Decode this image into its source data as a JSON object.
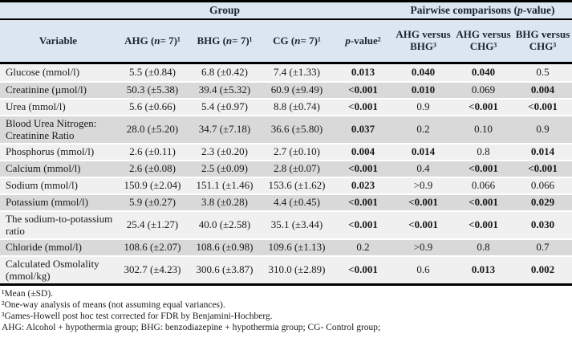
{
  "colors": {
    "header_bg": "#dce6f1",
    "row_light": "#f0f0f0",
    "row_dark": "#d9d9d9",
    "border": "#000000",
    "header_text": "#1c2334",
    "body_text": "#1a1a1a"
  },
  "table": {
    "header": {
      "group_parts": [
        {
          "t": "Group"
        }
      ],
      "pairwise_parts": [
        {
          "t": "Pairwise comparisons ("
        },
        {
          "t": "p",
          "i": true
        },
        {
          "t": "-value)"
        }
      ],
      "columns": [
        {
          "key": "variable",
          "parts": [
            {
              "t": "Variable"
            }
          ]
        },
        {
          "key": "ahg",
          "parts": [
            {
              "t": "AHG ("
            },
            {
              "t": "n",
              "i": true
            },
            {
              "t": " = 7)¹"
            }
          ]
        },
        {
          "key": "bhg",
          "parts": [
            {
              "t": "BHG ("
            },
            {
              "t": "n",
              "i": true
            },
            {
              "t": " = 7)¹"
            }
          ]
        },
        {
          "key": "cg",
          "parts": [
            {
              "t": "CG ("
            },
            {
              "t": "n",
              "i": true
            },
            {
              "t": " = 7)¹"
            }
          ]
        },
        {
          "key": "p",
          "parts": [
            {
              "t": "p",
              "i": true
            },
            {
              "t": "-value²"
            }
          ]
        },
        {
          "key": "ahg_bhg",
          "parts": [
            {
              "t": "AHG versus BHG³"
            }
          ]
        },
        {
          "key": "ahg_chg",
          "parts": [
            {
              "t": "AHG versus CHG³"
            }
          ]
        },
        {
          "key": "bhg_chg",
          "parts": [
            {
              "t": "BHG versus CHG³"
            }
          ]
        }
      ]
    },
    "rows": [
      {
        "variable": "Glucose (mmol/l)",
        "ahg": "5.5 (±0.84)",
        "bhg": "6.8 (±0.42)",
        "cg": "7.4 (±1.33)",
        "p": {
          "t": "0.013",
          "b": true
        },
        "ahg_bhg": {
          "t": "0.040",
          "b": true
        },
        "ahg_chg": {
          "t": "0.040",
          "b": true
        },
        "bhg_chg": {
          "t": "0.5",
          "b": false
        }
      },
      {
        "variable": "Creatinine (µmol/l)",
        "ahg": "50.3 (±5.38)",
        "bhg": "39.4 (±5.32)",
        "cg": "60.9 (±9.49)",
        "p": {
          "t": "<0.001",
          "b": true
        },
        "ahg_bhg": {
          "t": "0.010",
          "b": true
        },
        "ahg_chg": {
          "t": "0.069",
          "b": false
        },
        "bhg_chg": {
          "t": "0.004",
          "b": true
        }
      },
      {
        "variable": "Urea (mmol/l)",
        "ahg": "5.6 (±0.66)",
        "bhg": "5.4 (±0.97)",
        "cg": "8.8 (±0.74)",
        "p": {
          "t": "<0.001",
          "b": true
        },
        "ahg_bhg": {
          "t": "0.9",
          "b": false
        },
        "ahg_chg": {
          "t": "<0.001",
          "b": true
        },
        "bhg_chg": {
          "t": "<0.001",
          "b": true
        }
      },
      {
        "variable": "Blood Urea Nitrogen: Creatinine Ratio",
        "ahg": "28.0 (±5.20)",
        "bhg": "34.7 (±7.18)",
        "cg": "36.6 (±5.80)",
        "p": {
          "t": "0.037",
          "b": true
        },
        "ahg_bhg": {
          "t": "0.2",
          "b": false
        },
        "ahg_chg": {
          "t": "0.10",
          "b": false
        },
        "bhg_chg": {
          "t": "0.9",
          "b": false
        }
      },
      {
        "variable": "Phosphorus (mmol/l)",
        "ahg": "2.6 (±0.11)",
        "bhg": "2.3 (±0.20)",
        "cg": "2.7 (±0.10)",
        "p": {
          "t": "0.004",
          "b": true
        },
        "ahg_bhg": {
          "t": "0.014",
          "b": true
        },
        "ahg_chg": {
          "t": "0.8",
          "b": false
        },
        "bhg_chg": {
          "t": "0.014",
          "b": true
        }
      },
      {
        "variable": "Calcium (mmol/l)",
        "ahg": "2.6 (±0.08)",
        "bhg": "2.5 (±0.09)",
        "cg": "2.8 (±0.07)",
        "p": {
          "t": "<0.001",
          "b": true
        },
        "ahg_bhg": {
          "t": "0.4",
          "b": false
        },
        "ahg_chg": {
          "t": "<0.001",
          "b": true
        },
        "bhg_chg": {
          "t": "<0.001",
          "b": true
        }
      },
      {
        "variable": "Sodium (mmol/l)",
        "ahg": "150.9 (±2.04)",
        "bhg": "151.1 (±1.46)",
        "cg": "153.6 (±1.62)",
        "p": {
          "t": "0.023",
          "b": true
        },
        "ahg_bhg": {
          "t": ">0.9",
          "b": false
        },
        "ahg_chg": {
          "t": "0.066",
          "b": false
        },
        "bhg_chg": {
          "t": "0.066",
          "b": false
        }
      },
      {
        "variable": "Potassium (mmol/l)",
        "ahg": "5.9 (±0.27)",
        "bhg": "3.8 (±0.28)",
        "cg": "4.4 (±0.45)",
        "p": {
          "t": "<0.001",
          "b": true
        },
        "ahg_bhg": {
          "t": "<0.001",
          "b": true
        },
        "ahg_chg": {
          "t": "<0.001",
          "b": true
        },
        "bhg_chg": {
          "t": "0.029",
          "b": true
        }
      },
      {
        "variable": "The sodium-to-potassium ratio",
        "ahg": "25.4 (±1.27)",
        "bhg": "40.0 (±2.58)",
        "cg": "35.1 (±3.44)",
        "p": {
          "t": "<0.001",
          "b": true
        },
        "ahg_bhg": {
          "t": "<0.001",
          "b": true
        },
        "ahg_chg": {
          "t": "<0.001",
          "b": true
        },
        "bhg_chg": {
          "t": "0.030",
          "b": true
        }
      },
      {
        "variable": "Chloride (mmol/l)",
        "ahg": "108.6 (±2.07)",
        "bhg": "108.6 (±0.98)",
        "cg": "109.6 (±1.13)",
        "p": {
          "t": "0.2",
          "b": false
        },
        "ahg_bhg": {
          "t": ">0.9",
          "b": false
        },
        "ahg_chg": {
          "t": "0.8",
          "b": false
        },
        "bhg_chg": {
          "t": "0.7",
          "b": false
        }
      },
      {
        "variable": "Calculated Osmolality (mmol/kg)",
        "ahg": "302.7 (±4.23)",
        "bhg": "300.6 (±3.87)",
        "cg": "310.0 (±2.89)",
        "p": {
          "t": "<0.001",
          "b": true
        },
        "ahg_bhg": {
          "t": "0.6",
          "b": false
        },
        "ahg_chg": {
          "t": "0.013",
          "b": true
        },
        "bhg_chg": {
          "t": "0.002",
          "b": true
        }
      }
    ]
  },
  "footnotes": [
    "¹Mean (±SD).",
    "²One-way analysis of means (not assuming equal variances).",
    "³Games-Howell post hoc test corrected for FDR by Benjamini-Hochberg.",
    "AHG: Alcohol + hypothermia group; BHG: benzodiazepine + hypothermia group; CG- Control group;"
  ]
}
